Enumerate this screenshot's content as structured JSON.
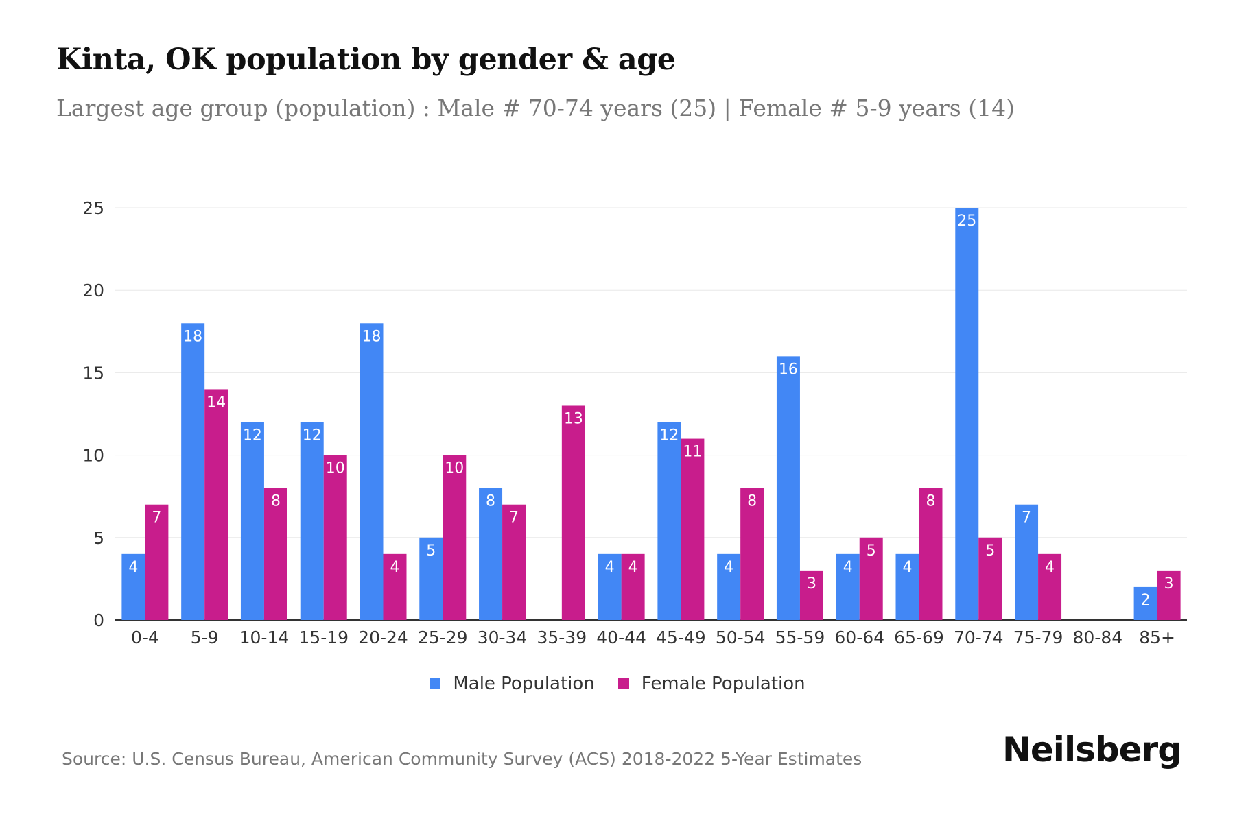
{
  "title": "Kinta, OK population by gender & age",
  "subtitle": "Largest age group (population) : Male # 70-74 years (25) | Female # 5-9 years (14)",
  "source": "Source: U.S. Census Bureau, American Community Survey (ACS) 2018-2022 5-Year Estimates",
  "brand": "Neilsberg",
  "colors": {
    "male": "#4287f5",
    "female": "#c81d8c"
  },
  "chart_data": {
    "type": "bar",
    "title": "Kinta, OK population by gender & age",
    "xlabel": "",
    "ylabel": "",
    "ylim": [
      0,
      25
    ],
    "yticks": [
      0,
      5,
      10,
      15,
      20,
      25
    ],
    "grid": true,
    "legend_position": "bottom-center",
    "categories": [
      "0-4",
      "5-9",
      "10-14",
      "15-19",
      "20-24",
      "25-29",
      "30-34",
      "35-39",
      "40-44",
      "45-49",
      "50-54",
      "55-59",
      "60-64",
      "65-69",
      "70-74",
      "75-79",
      "80-84",
      "85+"
    ],
    "series": [
      {
        "name": "Male Population",
        "values": [
          4,
          18,
          12,
          12,
          18,
          5,
          8,
          0,
          4,
          12,
          4,
          16,
          4,
          4,
          25,
          7,
          0,
          2
        ]
      },
      {
        "name": "Female Population",
        "values": [
          7,
          14,
          8,
          10,
          4,
          10,
          7,
          13,
          4,
          11,
          8,
          3,
          5,
          8,
          5,
          4,
          0,
          3
        ]
      }
    ]
  }
}
